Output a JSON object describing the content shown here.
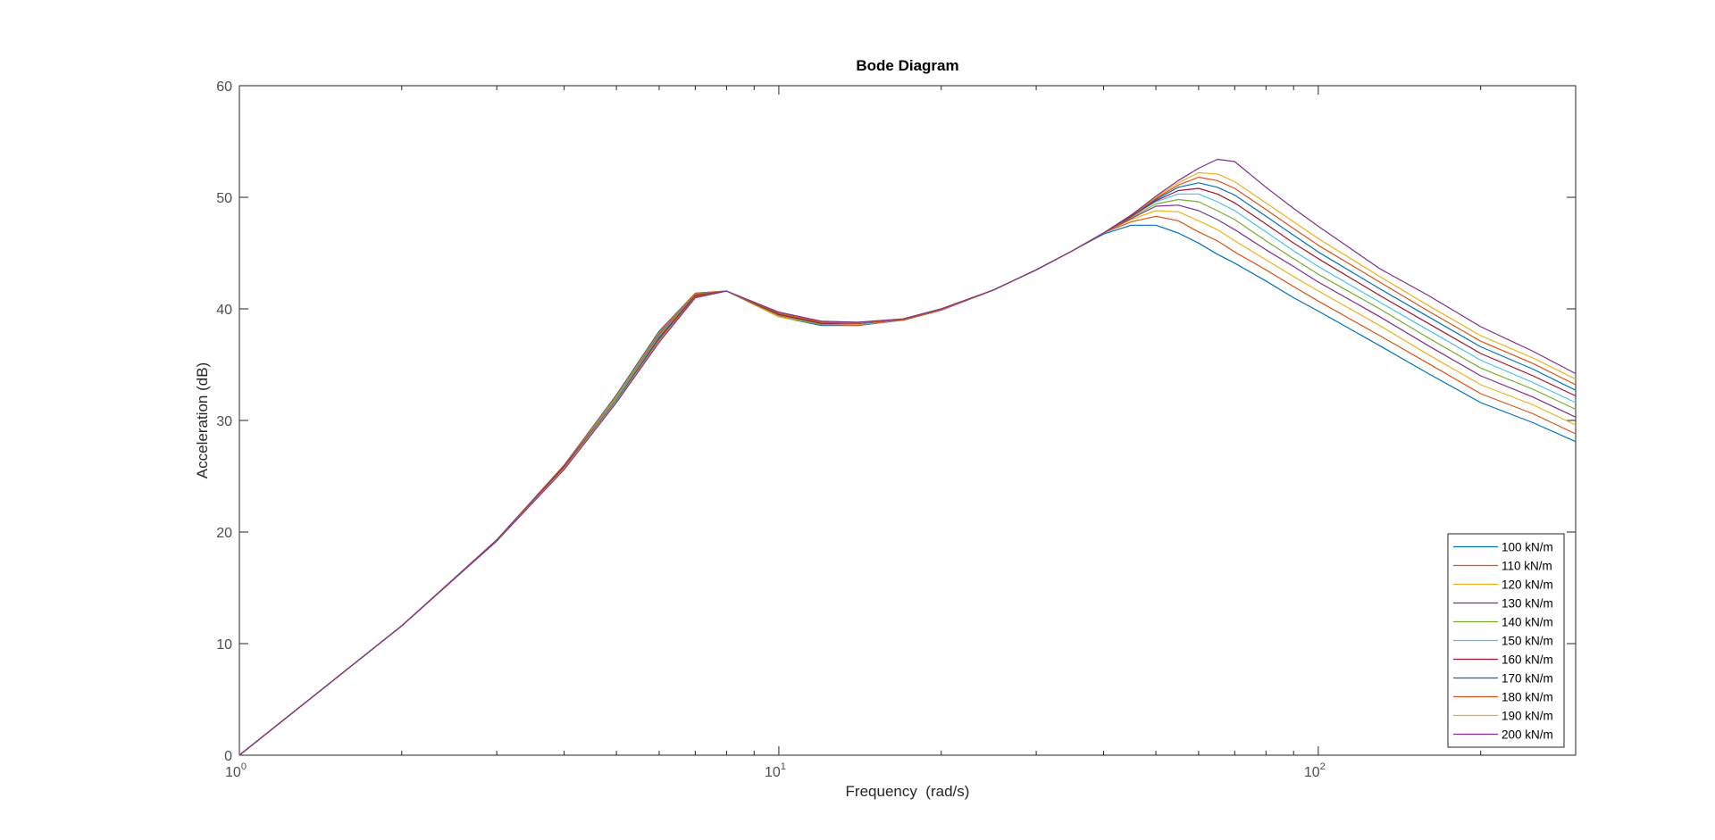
{
  "chart_data": {
    "type": "line",
    "title": "Bode Diagram",
    "xlabel": "Frequency  (rad/s)",
    "ylabel": "Acceleration (dB)",
    "xscale": "log",
    "xlim": [
      1,
      300
    ],
    "ylim": [
      0,
      60
    ],
    "x_ticks": [
      {
        "value": 1,
        "base": "10",
        "exp": "0"
      },
      {
        "value": 10,
        "base": "10",
        "exp": "1"
      },
      {
        "value": 100,
        "base": "10",
        "exp": "2"
      }
    ],
    "y_ticks": [
      "0",
      "10",
      "20",
      "30",
      "40",
      "50",
      "60"
    ],
    "grid": false,
    "legend_position": "bottom-right",
    "x": [
      1,
      2,
      3,
      4,
      5,
      6,
      7,
      8,
      10,
      12,
      14,
      17,
      20,
      25,
      30,
      35,
      40,
      45,
      50,
      55,
      60,
      65,
      70,
      80,
      90,
      100,
      130,
      160,
      200,
      250,
      300
    ],
    "series": [
      {
        "name": "100 kN/m",
        "color": "#0072BD",
        "values": [
          0,
          11.6,
          19.3,
          26.0,
          32.3,
          38.0,
          41.4,
          41.6,
          39.3,
          38.5,
          38.5,
          39.0,
          39.9,
          41.7,
          43.5,
          45.2,
          46.7,
          47.5,
          47.5,
          46.8,
          45.9,
          44.9,
          44.1,
          42.5,
          41.0,
          39.8,
          36.7,
          34.2,
          31.6,
          29.8,
          28.1
        ]
      },
      {
        "name": "110 kN/m",
        "color": "#D95319",
        "values": [
          0,
          11.6,
          19.3,
          26.0,
          32.2,
          37.9,
          41.4,
          41.6,
          39.3,
          38.6,
          38.5,
          39.0,
          39.9,
          41.7,
          43.5,
          45.2,
          46.8,
          47.8,
          48.3,
          47.9,
          46.9,
          46.1,
          45.1,
          43.5,
          42.0,
          40.7,
          37.6,
          35.1,
          32.4,
          30.6,
          28.8
        ]
      },
      {
        "name": "120 kN/m",
        "color": "#EDB120",
        "values": [
          0,
          11.6,
          19.3,
          25.9,
          32.1,
          37.8,
          41.3,
          41.6,
          39.3,
          38.6,
          38.6,
          39.0,
          39.9,
          41.7,
          43.5,
          45.2,
          46.8,
          48.0,
          48.8,
          48.7,
          47.9,
          47.1,
          46.1,
          44.4,
          42.9,
          41.6,
          38.5,
          35.9,
          33.2,
          31.4,
          29.6
        ]
      },
      {
        "name": "130 kN/m",
        "color": "#7E2F8E",
        "values": [
          0,
          11.6,
          19.3,
          25.9,
          32.0,
          37.7,
          41.3,
          41.6,
          39.4,
          38.6,
          38.6,
          39.0,
          39.9,
          41.7,
          43.5,
          45.2,
          46.8,
          48.1,
          49.2,
          49.3,
          48.8,
          48.0,
          47.1,
          45.3,
          43.8,
          42.4,
          39.3,
          36.7,
          34.0,
          32.1,
          30.3
        ]
      },
      {
        "name": "140 kN/m",
        "color": "#77AC30",
        "values": [
          0,
          11.6,
          19.2,
          25.8,
          32.0,
          37.6,
          41.3,
          41.6,
          39.4,
          38.6,
          38.6,
          39.0,
          39.9,
          41.7,
          43.5,
          45.2,
          46.8,
          48.2,
          49.4,
          49.8,
          49.6,
          48.8,
          48.0,
          46.1,
          44.5,
          43.1,
          40.0,
          37.4,
          34.7,
          32.8,
          31.0
        ]
      },
      {
        "name": "150 kN/m",
        "color": "#4DBEEE",
        "values": [
          0,
          11.6,
          19.2,
          25.8,
          31.9,
          37.5,
          41.2,
          41.6,
          39.5,
          38.7,
          38.6,
          39.0,
          39.9,
          41.7,
          43.5,
          45.2,
          46.8,
          48.3,
          49.6,
          50.3,
          50.3,
          49.6,
          48.8,
          46.9,
          45.2,
          43.8,
          40.6,
          38.1,
          35.4,
          33.4,
          31.6
        ]
      },
      {
        "name": "160 kN/m",
        "color": "#A2142F",
        "values": [
          0,
          11.6,
          19.2,
          25.8,
          31.8,
          37.4,
          41.2,
          41.6,
          39.5,
          38.7,
          38.7,
          39.0,
          39.9,
          41.7,
          43.5,
          45.2,
          46.8,
          48.3,
          49.7,
          50.6,
          50.8,
          50.3,
          49.5,
          47.6,
          45.9,
          44.5,
          41.2,
          38.7,
          36.0,
          34.0,
          32.2
        ]
      },
      {
        "name": "170 kN/m",
        "color": "#0072BD",
        "values": [
          0,
          11.6,
          19.2,
          25.7,
          31.8,
          37.3,
          41.1,
          41.6,
          39.6,
          38.8,
          38.7,
          39.0,
          39.9,
          41.7,
          43.5,
          45.2,
          46.8,
          48.4,
          49.8,
          50.9,
          51.3,
          50.9,
          50.2,
          48.3,
          46.6,
          45.1,
          41.8,
          39.3,
          36.6,
          34.6,
          32.7
        ]
      },
      {
        "name": "180 kN/m",
        "color": "#D95319",
        "values": [
          0,
          11.6,
          19.2,
          25.7,
          31.7,
          37.2,
          41.1,
          41.6,
          39.6,
          38.8,
          38.7,
          39.0,
          39.9,
          41.7,
          43.5,
          45.2,
          46.8,
          48.4,
          49.9,
          51.1,
          51.8,
          51.5,
          50.8,
          48.9,
          47.2,
          45.7,
          42.4,
          39.8,
          37.1,
          35.1,
          33.2
        ]
      },
      {
        "name": "190 kN/m",
        "color": "#EDB120",
        "values": [
          0,
          11.6,
          19.2,
          25.7,
          31.7,
          37.1,
          41.0,
          41.6,
          39.7,
          38.9,
          38.8,
          39.1,
          40.0,
          41.7,
          43.5,
          45.2,
          46.8,
          48.4,
          50.0,
          51.3,
          52.2,
          52.1,
          51.4,
          49.5,
          47.8,
          46.3,
          42.9,
          40.3,
          37.6,
          35.6,
          33.7
        ]
      },
      {
        "name": "200 kN/m",
        "color": "#7E2F8E",
        "values": [
          0,
          11.6,
          19.2,
          25.6,
          31.6,
          37.0,
          41.0,
          41.6,
          39.7,
          38.9,
          38.8,
          39.1,
          40.0,
          41.7,
          43.5,
          45.2,
          46.8,
          48.4,
          50.1,
          51.5,
          52.6,
          53.4,
          53.2,
          50.9,
          49.0,
          47.4,
          43.6,
          41.2,
          38.4,
          36.2,
          34.2
        ]
      }
    ]
  }
}
